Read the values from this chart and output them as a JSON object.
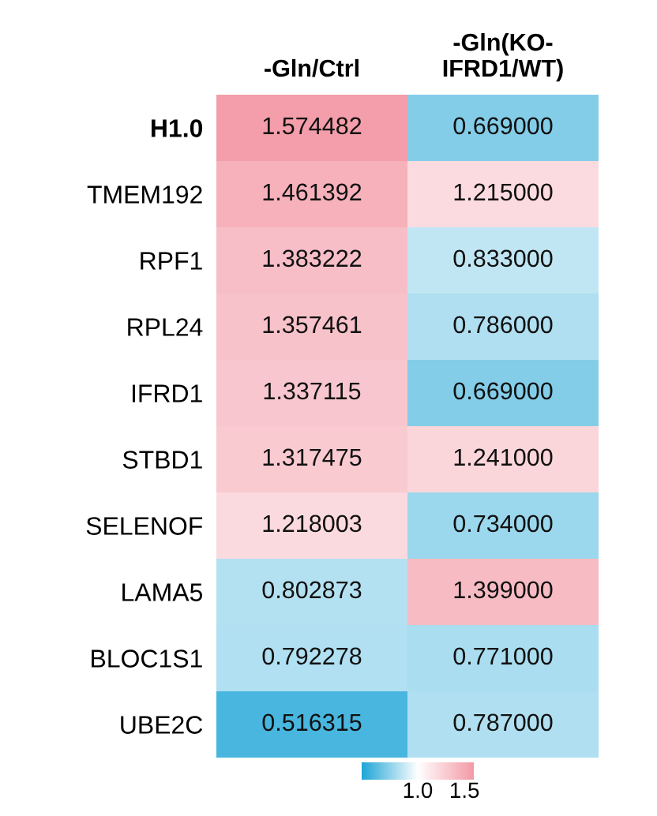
{
  "chart_data": {
    "type": "heatmap",
    "categories": [
      "-Gln/Ctrl",
      "-Gln(KO-\nIFRD1/WT)"
    ],
    "y_categories": [
      "H1.0",
      "TMEM192",
      "RPF1",
      "RPL24",
      "IFRD1",
      "STBD1",
      "SELENOF",
      "LAMA5",
      "BLOC1S1",
      "UBE2C"
    ],
    "cells": [
      [
        1.574482,
        0.669
      ],
      [
        1.461392,
        1.215
      ],
      [
        1.383222,
        0.833
      ],
      [
        1.357461,
        0.786
      ],
      [
        1.337115,
        0.669
      ],
      [
        1.317475,
        1.241
      ],
      [
        1.218003,
        0.734
      ],
      [
        0.802873,
        1.399
      ],
      [
        0.792278,
        0.771
      ],
      [
        0.516315,
        0.787
      ]
    ],
    "cell_labels": [
      [
        "1.574482",
        "0.669000"
      ],
      [
        "1.461392",
        "1.215000"
      ],
      [
        "1.383222",
        "0.833000"
      ],
      [
        "1.357461",
        "0.786000"
      ],
      [
        "1.337115",
        "0.669000"
      ],
      [
        "1.317475",
        "1.241000"
      ],
      [
        "1.218003",
        "0.734000"
      ],
      [
        "0.802873",
        "1.399000"
      ],
      [
        "0.792278",
        "0.771000"
      ],
      [
        "0.516315",
        "0.787000"
      ]
    ],
    "clim": [
      0.4,
      1.6
    ],
    "cticks": [
      {
        "value": 1,
        "label": "1.0"
      },
      {
        "value": 1.5,
        "label": "1.5"
      }
    ]
  }
}
